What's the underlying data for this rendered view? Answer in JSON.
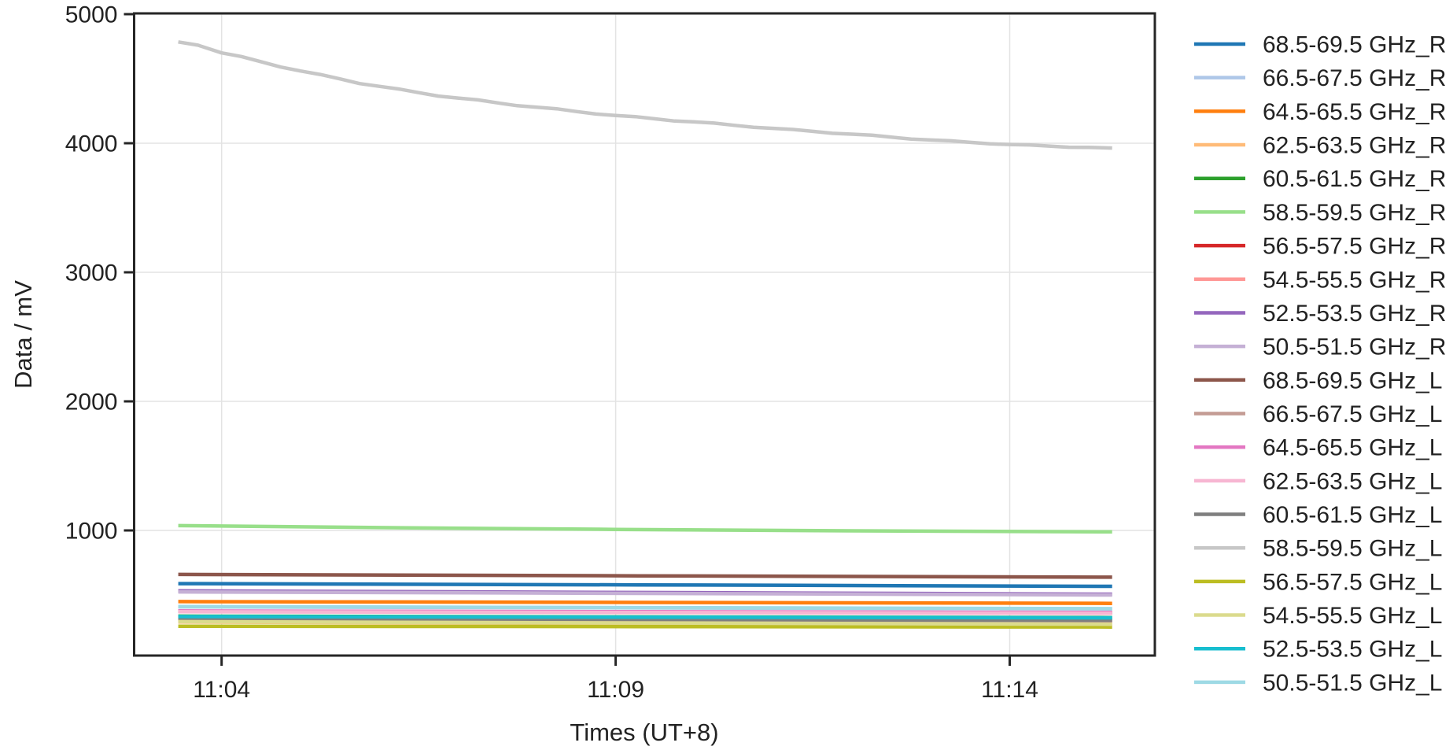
{
  "chart_data": {
    "type": "line",
    "title": "",
    "xlabel": "Times (UT+8)",
    "ylabel": "Data / mV",
    "x_axis_note": "x values are minutes after 11:00 (UT+8)",
    "xticks": [
      {
        "t": 4,
        "label": "11:04"
      },
      {
        "t": 9,
        "label": "11:09"
      },
      {
        "t": 14,
        "label": "11:14"
      }
    ],
    "yticks": [
      1000,
      2000,
      3000,
      4000,
      5000
    ],
    "xlim": [
      2.89,
      15.84
    ],
    "ylim": [
      30,
      5010
    ],
    "grid": true,
    "legend_position": "right-outside",
    "series": [
      {
        "name": "68.5-69.5 GHz_R",
        "color": "#1f77b4",
        "points": [
          [
            3.45,
            588
          ],
          [
            9.3,
            578
          ],
          [
            15.3,
            567
          ]
        ]
      },
      {
        "name": "66.5-67.5 GHz_R",
        "color": "#aec7e8",
        "points": [
          [
            3.45,
            408
          ],
          [
            9.3,
            400
          ],
          [
            15.3,
            392
          ]
        ]
      },
      {
        "name": "64.5-65.5 GHz_R",
        "color": "#ff7f0e",
        "points": [
          [
            3.45,
            449
          ],
          [
            9.3,
            442
          ],
          [
            15.3,
            435
          ]
        ]
      },
      {
        "name": "62.5-63.5 GHz_R",
        "color": "#ffbb78",
        "points": [
          [
            3.45,
            290
          ],
          [
            9.3,
            280
          ],
          [
            15.3,
            270
          ]
        ]
      },
      {
        "name": "60.5-61.5 GHz_R",
        "color": "#2ca02c",
        "points": [
          [
            3.45,
            336
          ],
          [
            9.3,
            330
          ],
          [
            15.3,
            325
          ]
        ]
      },
      {
        "name": "58.5-59.5 GHz_R",
        "color": "#98df8a",
        "points": [
          [
            3.45,
            1037
          ],
          [
            6.0,
            1022
          ],
          [
            9.0,
            1008
          ],
          [
            12.0,
            997
          ],
          [
            15.3,
            989
          ]
        ]
      },
      {
        "name": "56.5-57.5 GHz_R",
        "color": "#d62728",
        "points": [
          [
            3.45,
            374
          ],
          [
            9.3,
            368
          ],
          [
            15.3,
            362
          ]
        ]
      },
      {
        "name": "54.5-55.5 GHz_R",
        "color": "#ff9896",
        "points": [
          [
            3.45,
            315
          ],
          [
            9.3,
            307
          ],
          [
            15.3,
            300
          ]
        ]
      },
      {
        "name": "52.5-53.5 GHz_R",
        "color": "#9467bd",
        "points": [
          [
            3.45,
            532
          ],
          [
            9.3,
            519
          ],
          [
            15.3,
            506
          ]
        ]
      },
      {
        "name": "50.5-51.5 GHz_R",
        "color": "#c5b0d5",
        "points": [
          [
            3.45,
            524
          ],
          [
            9.3,
            512
          ],
          [
            15.3,
            500
          ]
        ]
      },
      {
        "name": "68.5-69.5 GHz_L",
        "color": "#8c564b",
        "points": [
          [
            3.45,
            659
          ],
          [
            9.3,
            648
          ],
          [
            15.3,
            638
          ]
        ]
      },
      {
        "name": "66.5-67.5 GHz_L",
        "color": "#c49c94",
        "points": [
          [
            3.45,
            312
          ],
          [
            9.3,
            307
          ],
          [
            15.3,
            302
          ]
        ]
      },
      {
        "name": "64.5-65.5 GHz_L",
        "color": "#e377c2",
        "points": [
          [
            3.45,
            376
          ],
          [
            9.3,
            370
          ],
          [
            15.3,
            364
          ]
        ]
      },
      {
        "name": "62.5-63.5 GHz_L",
        "color": "#f7b6d2",
        "points": [
          [
            3.45,
            370
          ],
          [
            9.3,
            364
          ],
          [
            15.3,
            358
          ]
        ]
      },
      {
        "name": "60.5-61.5 GHz_L",
        "color": "#7f7f7f",
        "points": [
          [
            3.45,
            319
          ],
          [
            9.3,
            311
          ],
          [
            15.3,
            303
          ]
        ]
      },
      {
        "name": "58.5-59.5 GHz_L",
        "color": "#c7c7c7",
        "points": [
          [
            3.45,
            4785
          ],
          [
            3.7,
            4760
          ],
          [
            4.0,
            4700
          ],
          [
            4.25,
            4672
          ],
          [
            4.5,
            4632
          ],
          [
            4.75,
            4590
          ],
          [
            5.0,
            4560
          ],
          [
            5.25,
            4533
          ],
          [
            5.5,
            4499
          ],
          [
            5.75,
            4462
          ],
          [
            6.0,
            4441
          ],
          [
            6.25,
            4420
          ],
          [
            6.5,
            4392
          ],
          [
            6.75,
            4365
          ],
          [
            7.0,
            4350
          ],
          [
            7.25,
            4336
          ],
          [
            7.5,
            4313
          ],
          [
            7.75,
            4291
          ],
          [
            8.0,
            4279
          ],
          [
            8.25,
            4267
          ],
          [
            8.5,
            4246
          ],
          [
            8.75,
            4226
          ],
          [
            9.0,
            4215
          ],
          [
            9.25,
            4206
          ],
          [
            9.5,
            4189
          ],
          [
            9.75,
            4172
          ],
          [
            10.0,
            4165
          ],
          [
            10.25,
            4156
          ],
          [
            10.5,
            4139
          ],
          [
            10.75,
            4123
          ],
          [
            11.0,
            4115
          ],
          [
            11.25,
            4107
          ],
          [
            11.5,
            4092
          ],
          [
            11.75,
            4077
          ],
          [
            12.0,
            4070
          ],
          [
            12.25,
            4062
          ],
          [
            12.5,
            4047
          ],
          [
            12.75,
            4032
          ],
          [
            13.0,
            4025
          ],
          [
            13.25,
            4019
          ],
          [
            13.5,
            4007
          ],
          [
            13.75,
            3995
          ],
          [
            14.0,
            3990
          ],
          [
            14.25,
            3987
          ],
          [
            14.5,
            3978
          ],
          [
            14.75,
            3969
          ],
          [
            15.0,
            3968
          ],
          [
            15.3,
            3963
          ]
        ]
      },
      {
        "name": "56.5-57.5 GHz_L",
        "color": "#bcbd22",
        "points": [
          [
            3.45,
            258
          ],
          [
            9.3,
            255
          ],
          [
            15.3,
            252
          ]
        ]
      },
      {
        "name": "54.5-55.5 GHz_L",
        "color": "#dbdb8d",
        "points": [
          [
            3.45,
            293
          ],
          [
            9.3,
            283
          ],
          [
            15.3,
            273
          ]
        ]
      },
      {
        "name": "52.5-53.5 GHz_L",
        "color": "#17becf",
        "points": [
          [
            3.45,
            333
          ],
          [
            9.3,
            328
          ],
          [
            15.3,
            323
          ]
        ]
      },
      {
        "name": "50.5-51.5 GHz_L",
        "color": "#9edae5",
        "points": [
          [
            3.45,
            410
          ],
          [
            9.3,
            402
          ],
          [
            15.3,
            394
          ]
        ]
      }
    ]
  }
}
